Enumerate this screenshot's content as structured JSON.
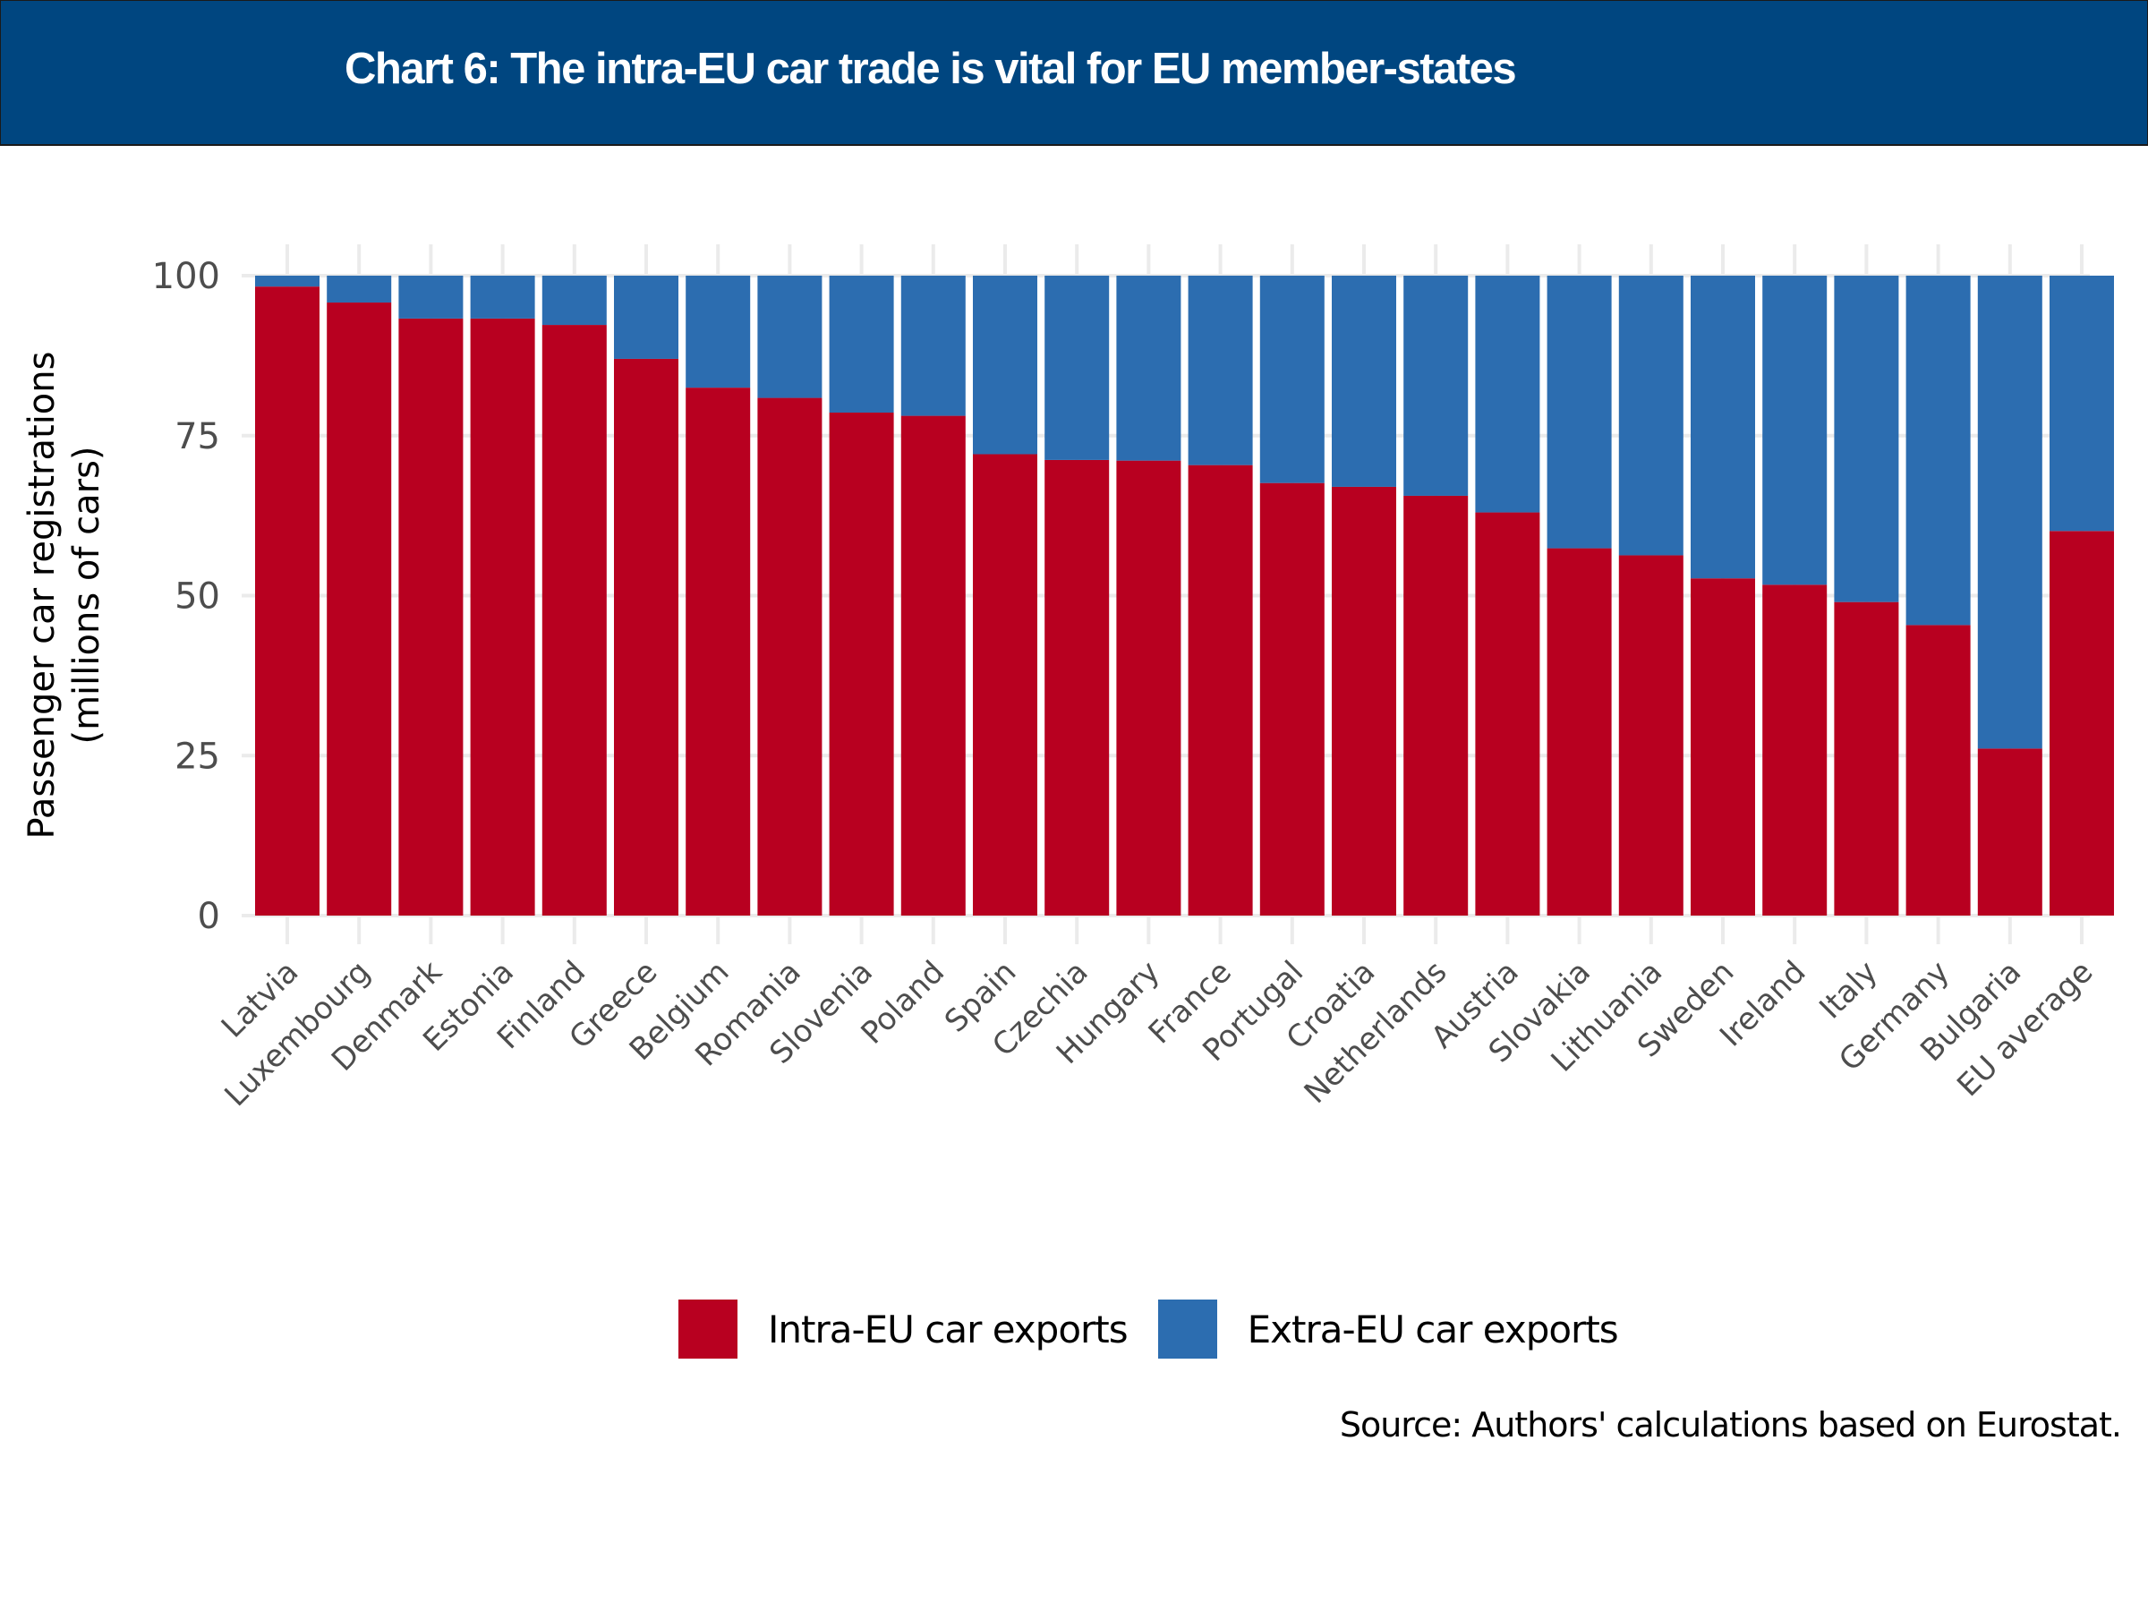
{
  "header": {
    "title": "Chart 6: The intra-EU car trade is vital for EU member-states",
    "background_color": "#004680"
  },
  "chart_data": {
    "type": "bar",
    "stacked": true,
    "title": "Chart 6: The intra-EU car trade is vital for EU member-states",
    "xlabel": "",
    "ylabel": "Passenger car registrations\n(millions of cars)",
    "ylabel_lines": [
      "Passenger car registrations",
      "(millions of cars)"
    ],
    "ylim": [
      0,
      100
    ],
    "yticks": [
      0,
      25,
      50,
      75,
      100
    ],
    "grid": true,
    "legend_position": "bottom",
    "categories": [
      "Latvia",
      "Luxembourg",
      "Denmark",
      "Estonia",
      "Finland",
      "Greece",
      "Belgium",
      "Romania",
      "Slovenia",
      "Poland",
      "Spain",
      "Czechia",
      "Hungary",
      "France",
      "Portugal",
      "Croatia",
      "Netherlands",
      "Austria",
      "Slovakia",
      "Lithuania",
      "Sweden",
      "Ireland",
      "Italy",
      "Germany",
      "Bulgaria",
      "EU average"
    ],
    "series": [
      {
        "name": "Intra-EU car exports",
        "color": "#B80020",
        "values": [
          98.3,
          95.8,
          93.3,
          93.3,
          92.3,
          87.0,
          82.5,
          80.9,
          78.6,
          78.1,
          72.1,
          71.2,
          71.1,
          70.4,
          67.6,
          67.0,
          65.6,
          63.0,
          57.4,
          56.3,
          52.7,
          51.7,
          49.0,
          45.4,
          26.1,
          60.1
        ]
      },
      {
        "name": "Extra-EU car exports",
        "color": "#2C6DB0",
        "values": [
          1.7,
          4.2,
          6.7,
          6.7,
          7.7,
          13.0,
          17.5,
          19.1,
          21.4,
          21.9,
          27.9,
          28.8,
          28.9,
          29.6,
          32.4,
          33.0,
          34.4,
          37.0,
          42.6,
          43.7,
          47.3,
          48.3,
          51.0,
          54.6,
          73.9,
          39.9
        ]
      }
    ]
  },
  "legend": {
    "items": [
      {
        "label": "Intra-EU car exports",
        "color": "#B80020"
      },
      {
        "label": "Extra-EU car exports",
        "color": "#2C6DB0"
      }
    ]
  },
  "source": "Source: Authors' calculations based on Eurostat."
}
